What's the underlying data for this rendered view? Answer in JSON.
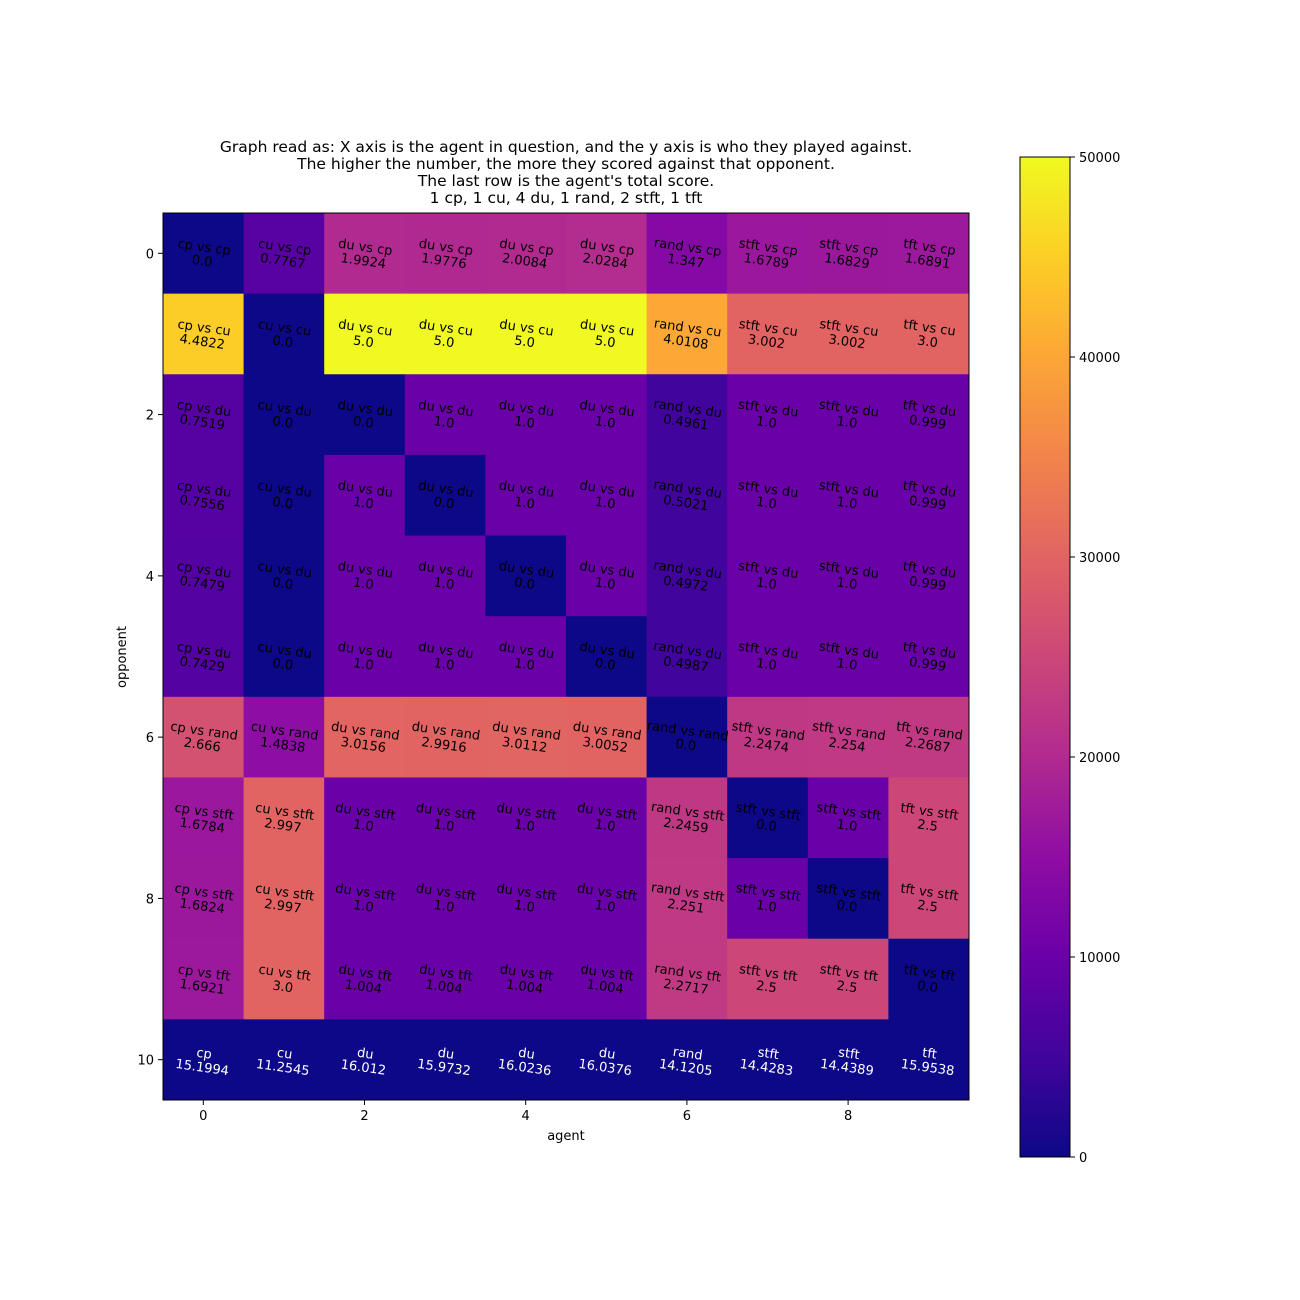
{
  "chart_data": {
    "type": "heatmap",
    "title_lines": [
      "Graph read as: X axis is the agent in question, and the y axis is who they played against.",
      "The higher the number, the more they scored against that opponent.",
      "The last row is the agent's total score.",
      "1 cp, 1 cu, 4 du, 1 rand, 2 stft, 1 tft"
    ],
    "xlabel": "agent",
    "ylabel": "opponent",
    "xticks": [
      "0",
      "2",
      "4",
      "6",
      "8"
    ],
    "yticks": [
      "0",
      "2",
      "4",
      "6",
      "8",
      "10"
    ],
    "colormap": "plasma",
    "colorbar": {
      "min": 0,
      "max": 50000,
      "ticks": [
        "0",
        "10000",
        "20000",
        "30000",
        "40000",
        "50000"
      ]
    },
    "cell_labels": [
      [
        "cp vs cp\n0.0",
        "cu vs cp\n0.7767",
        "du vs cp\n1.9924",
        "du vs cp\n1.9776",
        "du vs cp\n2.0084",
        "du vs cp\n2.0284",
        "rand vs cp\n1.347",
        "stft vs cp\n1.6789",
        "stft vs cp\n1.6829",
        "tft vs cp\n1.6891"
      ],
      [
        "cp vs cu\n4.4822",
        "cu vs cu\n0.0",
        "du vs cu\n5.0",
        "du vs cu\n5.0",
        "du vs cu\n5.0",
        "du vs cu\n5.0",
        "rand vs cu\n4.0108",
        "stft vs cu\n3.002",
        "stft vs cu\n3.002",
        "tft vs cu\n3.0"
      ],
      [
        "cp vs du\n0.7519",
        "cu vs du\n0.0",
        "du vs du\n0.0",
        "du vs du\n1.0",
        "du vs du\n1.0",
        "du vs du\n1.0",
        "rand vs du\n0.4961",
        "stft vs du\n1.0",
        "stft vs du\n1.0",
        "tft vs du\n0.999"
      ],
      [
        "cp vs du\n0.7556",
        "cu vs du\n0.0",
        "du vs du\n1.0",
        "du vs du\n0.0",
        "du vs du\n1.0",
        "du vs du\n1.0",
        "rand vs du\n0.5021",
        "stft vs du\n1.0",
        "stft vs du\n1.0",
        "tft vs du\n0.999"
      ],
      [
        "cp vs du\n0.7479",
        "cu vs du\n0.0",
        "du vs du\n1.0",
        "du vs du\n1.0",
        "du vs du\n0.0",
        "du vs du\n1.0",
        "rand vs du\n0.4972",
        "stft vs du\n1.0",
        "stft vs du\n1.0",
        "tft vs du\n0.999"
      ],
      [
        "cp vs du\n0.7429",
        "cu vs du\n0.0",
        "du vs du\n1.0",
        "du vs du\n1.0",
        "du vs du\n1.0",
        "du vs du\n0.0",
        "rand vs du\n0.4987",
        "stft vs du\n1.0",
        "stft vs du\n1.0",
        "tft vs du\n0.999"
      ],
      [
        "cp vs rand\n2.666",
        "cu vs rand\n1.4838",
        "du vs rand\n3.0156",
        "du vs rand\n2.9916",
        "du vs rand\n3.0112",
        "du vs rand\n3.0052",
        "rand vs rand\n0.0",
        "stft vs rand\n2.2474",
        "stft vs rand\n2.254",
        "tft vs rand\n2.2687"
      ],
      [
        "cp vs stft\n1.6784",
        "cu vs stft\n2.997",
        "du vs stft\n1.0",
        "du vs stft\n1.0",
        "du vs stft\n1.0",
        "du vs stft\n1.0",
        "rand vs stft\n2.2459",
        "stft vs stft\n0.0",
        "stft vs stft\n1.0",
        "tft vs stft\n2.5"
      ],
      [
        "cp vs stft\n1.6824",
        "cu vs stft\n2.997",
        "du vs stft\n1.0",
        "du vs stft\n1.0",
        "du vs stft\n1.0",
        "du vs stft\n1.0",
        "rand vs stft\n2.251",
        "stft vs stft\n1.0",
        "stft vs stft\n0.0",
        "tft vs stft\n2.5"
      ],
      [
        "cp vs tft\n1.6921",
        "cu vs tft\n3.0",
        "du vs tft\n1.004",
        "du vs tft\n1.004",
        "du vs tft\n1.004",
        "du vs tft\n1.004",
        "rand vs tft\n2.2717",
        "stft vs tft\n2.5",
        "stft vs tft\n2.5",
        "tft vs tft\n0.0"
      ],
      [
        "cp\n15.1994",
        "cu\n11.2545",
        "du\n16.012",
        "du\n15.9732",
        "du\n16.0236",
        "du\n16.0376",
        "rand\n14.1205",
        "stft\n14.4283",
        "stft\n14.4389",
        "tft\n15.9538"
      ]
    ],
    "values": [
      [
        0,
        7767,
        19924,
        19776,
        20084,
        20284,
        13470,
        16789,
        16829,
        16891
      ],
      [
        44822,
        0,
        50000,
        50000,
        50000,
        50000,
        40108,
        30020,
        30020,
        30000
      ],
      [
        7519,
        0,
        0,
        10000,
        10000,
        10000,
        4961,
        10000,
        10000,
        9990
      ],
      [
        7556,
        0,
        10000,
        0,
        10000,
        10000,
        5021,
        10000,
        10000,
        9990
      ],
      [
        7479,
        0,
        10000,
        10000,
        0,
        10000,
        4972,
        10000,
        10000,
        9990
      ],
      [
        7429,
        0,
        10000,
        10000,
        10000,
        0,
        4987,
        10000,
        10000,
        9990
      ],
      [
        26660,
        14838,
        30156,
        29916,
        30112,
        30052,
        0,
        22474,
        22540,
        22687
      ],
      [
        16784,
        29970,
        10000,
        10000,
        10000,
        10000,
        22459,
        0,
        10000,
        25000
      ],
      [
        16824,
        29970,
        10000,
        10000,
        10000,
        10000,
        22510,
        10000,
        0,
        25000
      ],
      [
        16921,
        30000,
        10040,
        10040,
        10040,
        10040,
        22717,
        25000,
        25000,
        0
      ],
      [
        0,
        0,
        0,
        0,
        0,
        0,
        0,
        0,
        0,
        0
      ]
    ],
    "grid": false,
    "legend": "colorbar right"
  }
}
